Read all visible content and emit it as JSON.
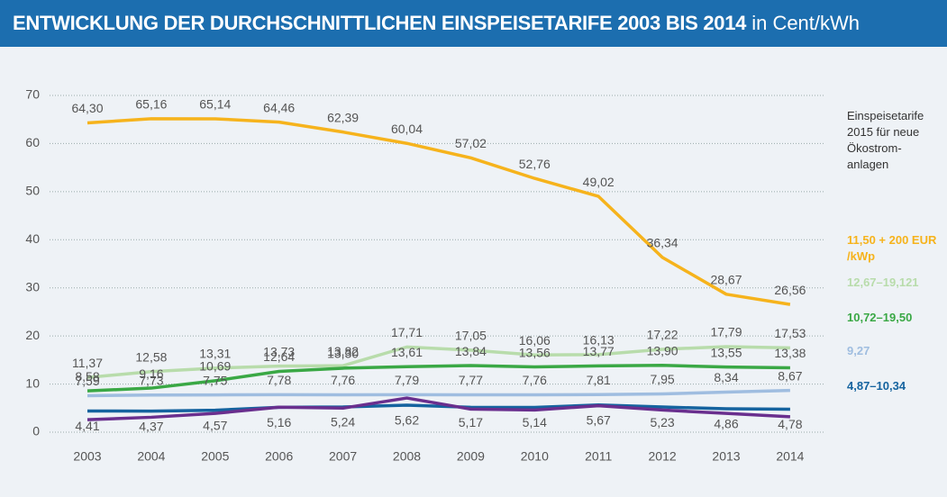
{
  "chart_data": {
    "type": "line",
    "title": "ENTWICKLUNG DER DURCHSCHNITTLICHEN EINSPEISETARIFE 2003 BIS 2014",
    "unit": "in Cent/kWh",
    "legend_title": "Einspeisetarife 2015 für neue Ökostrom-anlagen",
    "legend_position": "right",
    "grid": true,
    "categories": [
      "2003",
      "2004",
      "2005",
      "2006",
      "2007",
      "2008",
      "2009",
      "2010",
      "2011",
      "2012",
      "2013",
      "2014"
    ],
    "ylim": [
      0,
      70
    ],
    "yticks": [
      0,
      10,
      20,
      30,
      40,
      50,
      60,
      70
    ],
    "series": [
      {
        "name": "11,50 + 200 EUR /kWp",
        "color": "#f6b31c",
        "values": [
          64.3,
          65.16,
          65.14,
          64.46,
          62.39,
          60.04,
          57.02,
          52.76,
          49.02,
          36.34,
          28.67,
          26.56
        ],
        "value_labels": [
          "64,30",
          "65,16",
          "65,14",
          "64,46",
          "62,39",
          "60,04",
          "57,02",
          "52,76",
          "49,02",
          "36,34",
          "28,67",
          "26,56"
        ]
      },
      {
        "name": "12,67–19,121",
        "color": "#b8dcab",
        "values": [
          11.37,
          12.58,
          13.31,
          13.73,
          13.82,
          17.71,
          17.05,
          16.06,
          16.13,
          17.22,
          17.79,
          17.53
        ],
        "value_labels": [
          "11,37",
          "12,58",
          "13,31",
          "13,73",
          "13,82",
          "17,71",
          "17,05",
          "16,06",
          "16,13",
          "17,22",
          "17,79",
          "17,53"
        ]
      },
      {
        "name": "10,72–19,50",
        "color": "#3aa845",
        "values": [
          8.58,
          9.16,
          10.69,
          12.64,
          13.3,
          13.61,
          13.84,
          13.56,
          13.77,
          13.9,
          13.55,
          13.38
        ],
        "value_labels": [
          "8,58",
          "9,16",
          "10,69",
          "12,64",
          "13,30",
          "13,61",
          "13,84",
          "13,56",
          "13,77",
          "13,90",
          "13,55",
          "13,38"
        ]
      },
      {
        "name": "9,27",
        "color": "#9fbde0",
        "values": [
          7.59,
          7.73,
          7.75,
          7.78,
          7.76,
          7.79,
          7.77,
          7.76,
          7.81,
          7.95,
          8.34,
          8.67
        ],
        "value_labels": [
          "7,59",
          "7,73",
          "7,75",
          "7,78",
          "7,76",
          "7,79",
          "7,77",
          "7,76",
          "7,81",
          "7,95",
          "8,34",
          "8,67"
        ]
      },
      {
        "name": "4,87–10,34",
        "color": "#15639f",
        "values": [
          4.41,
          4.37,
          4.57,
          5.16,
          5.24,
          5.62,
          5.17,
          5.14,
          5.67,
          5.23,
          4.86,
          4.78
        ],
        "value_labels": [
          "4,41",
          "4,37",
          "4,57",
          "5,16",
          "5,24",
          "5,62",
          "5,17",
          "5,14",
          "5,67",
          "5,23",
          "4,86",
          "4,78"
        ]
      },
      {
        "color": "#6a2f8e",
        "values": [
          2.6,
          3.1,
          3.9,
          5.2,
          5.0,
          7.1,
          4.8,
          4.6,
          5.5,
          4.6,
          3.9,
          3.2
        ]
      }
    ]
  }
}
